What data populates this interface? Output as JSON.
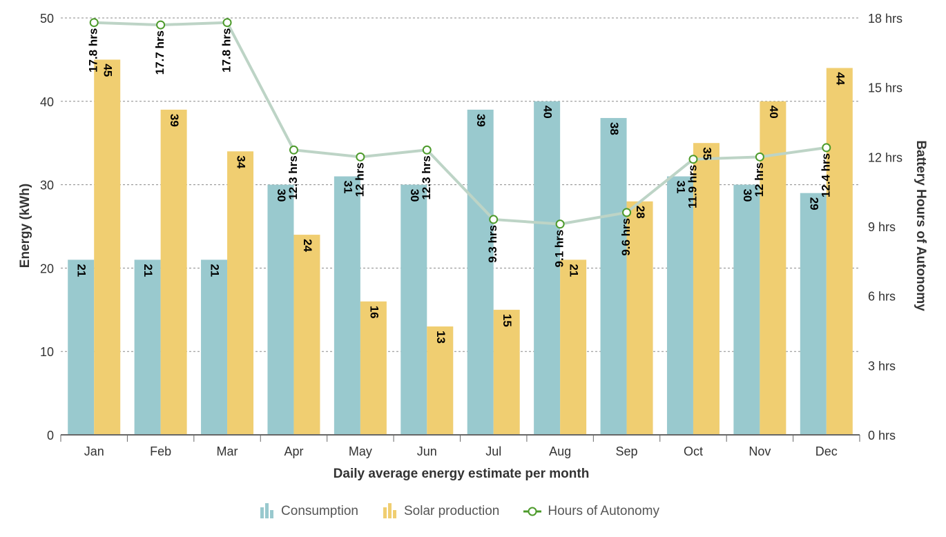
{
  "chart_data": {
    "type": "bar",
    "xlabel": "Daily average energy estimate per month",
    "ylabel": "Energy (kWh)",
    "y2label": "Battery Hours of Autonomy",
    "categories": [
      "Jan",
      "Feb",
      "Mar",
      "Apr",
      "May",
      "Jun",
      "Jul",
      "Aug",
      "Sep",
      "Oct",
      "Nov",
      "Dec"
    ],
    "ylim": [
      0,
      50
    ],
    "yticks": [
      "0",
      "10",
      "20",
      "30",
      "40",
      "50"
    ],
    "y2lim": [
      0,
      18
    ],
    "y2ticks": [
      "0 hrs",
      "3 hrs",
      "6 hrs",
      "9 hrs",
      "12 hrs",
      "15 hrs",
      "18 hrs"
    ],
    "grid": true,
    "legend_position": "bottom-center",
    "series": [
      {
        "name": "Consumption",
        "type": "bar",
        "color": "#99C9CE",
        "values": [
          21,
          21,
          21,
          30,
          31,
          30,
          39,
          40,
          38,
          31,
          30,
          29
        ],
        "labels": [
          "21",
          "21",
          "21",
          "30",
          "31",
          "30",
          "39",
          "40",
          "38",
          "31",
          "30",
          "29"
        ]
      },
      {
        "name": "Solar production",
        "type": "bar",
        "color": "#F0CE71",
        "values": [
          45,
          39,
          34,
          24,
          16,
          13,
          15,
          21,
          28,
          35,
          40,
          44
        ],
        "labels": [
          "45",
          "39",
          "34",
          "24",
          "16",
          "13",
          "15",
          "21",
          "28",
          "35",
          "40",
          "44"
        ]
      },
      {
        "name": "Hours of Autonomy",
        "type": "line",
        "axis": "right",
        "color": "#BDD4C6",
        "marker_color": "#4C9A2A",
        "values": [
          17.8,
          17.7,
          17.8,
          12.3,
          12,
          12.3,
          9.3,
          9.1,
          9.6,
          11.9,
          12,
          12.4
        ],
        "labels": [
          "17.8 hrs",
          "17.7 hrs",
          "17.8 hrs",
          "12.3 hrs",
          "12 hrs",
          "12.3 hrs",
          "9.3 hrs",
          "9.1 hrs",
          "9.6 hrs",
          "11.9 hrs",
          "12 hrs",
          "12.4 hrs"
        ]
      }
    ]
  }
}
